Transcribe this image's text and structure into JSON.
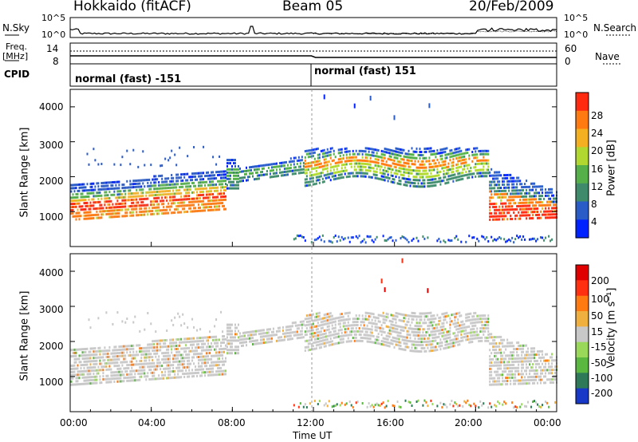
{
  "header": {
    "site": "Hokkaido (fitACF)",
    "beam": "Beam 05",
    "date": "20/Feb/2009"
  },
  "noise_panel": {
    "left_label": "N.Sky",
    "right_label": "N.Search",
    "left_ticks": [
      "10^5",
      "10^0"
    ],
    "right_ticks": [
      "10^5",
      "10^0"
    ]
  },
  "freq_panel": {
    "left_label_line1": "Freq.",
    "left_label_line2": "[MHz]",
    "right_label": "Nave",
    "left_ticks": [
      "14",
      "8"
    ],
    "right_ticks": [
      "60",
      "0"
    ]
  },
  "cpid_panel": {
    "label": "CPID",
    "modes": [
      "normal (fast) -151",
      "normal (fast) 151"
    ]
  },
  "chart_data": [
    {
      "type": "heatmap",
      "name": "power",
      "ylabel": "Slant Range [km]",
      "yticks": [
        "4000",
        "3000",
        "2000",
        "1000"
      ],
      "colorbar_label": "Power [dB]",
      "colorbar_ticks": [
        "28",
        "24",
        "20",
        "16",
        "12",
        "8",
        "4"
      ],
      "colorbar_colors": [
        "#0022ff",
        "#2a5cc8",
        "#3f8a6a",
        "#55b04a",
        "#b0d830",
        "#f4b020",
        "#ff7a10",
        "#ff2a10"
      ],
      "clim": [
        0,
        32
      ]
    },
    {
      "type": "heatmap",
      "name": "velocity",
      "ylabel": "Slant Range [km]",
      "yticks": [
        "4000",
        "3000",
        "2000",
        "1000"
      ],
      "colorbar_label": "Velocity [m s⁻¹]",
      "colorbar_ticks": [
        "200",
        "100",
        "50",
        "15",
        "-15",
        "-50",
        "-100",
        "-200"
      ],
      "colorbar_colors": [
        "#1838c8",
        "#2e7a58",
        "#5ab840",
        "#9ad85a",
        "#c8c8c8",
        "#f0b040",
        "#ff7a10",
        "#ff3010",
        "#e00000"
      ],
      "clim": [
        -250,
        250
      ]
    }
  ],
  "time_axis": {
    "label": "Time UT",
    "ticks": [
      "00:00",
      "04:00",
      "08:00",
      "12:00",
      "16:00",
      "20:00",
      "00:00"
    ]
  }
}
